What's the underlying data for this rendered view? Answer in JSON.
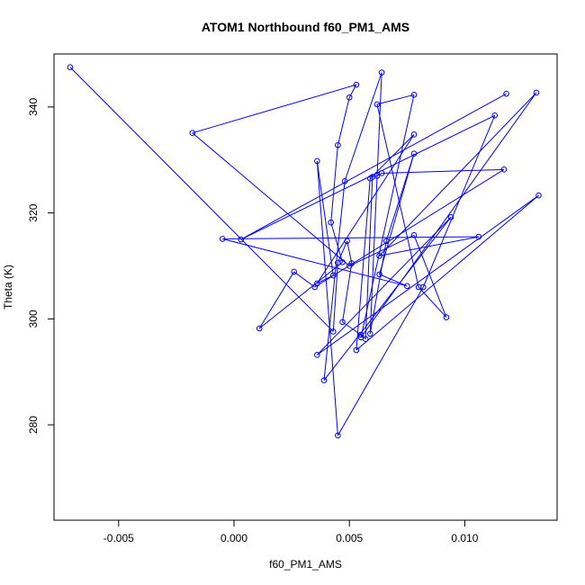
{
  "chart_data": {
    "type": "line",
    "title": "ATOM1 Northbound f60_PM1_AMS",
    "xlabel": "f60_PM1_AMS",
    "ylabel": "Theta (K)",
    "xlim": [
      -0.0078,
      0.014
    ],
    "ylim": [
      262.0,
      350.0
    ],
    "x_ticks": [
      -0.005,
      0.0,
      0.005,
      0.01
    ],
    "x_tick_labels": [
      "-0.005",
      "0.000",
      "0.005",
      "0.010"
    ],
    "y_ticks": [
      280,
      300,
      320,
      340
    ],
    "y_tick_labels": [
      "280",
      "300",
      "320",
      "340"
    ],
    "grid": false,
    "marker": "open-circle",
    "series": [
      {
        "color": "#0000ff",
        "points": [
          [
            -0.0071,
            347.5
          ],
          [
            0.0043,
            297.6
          ],
          [
            0.0045,
            310.6
          ],
          [
            0.0049,
            314.7
          ],
          [
            0.0051,
            310.5
          ],
          [
            0.0047,
            299.4
          ],
          [
            0.0055,
            297.0
          ],
          [
            0.0057,
            296.2
          ],
          [
            0.006,
            326.8
          ],
          [
            0.0062,
            327.0
          ],
          [
            0.0064,
            327.5
          ],
          [
            0.0117,
            328.2
          ],
          [
            0.0035,
            306.0
          ],
          [
            0.0026,
            308.9
          ],
          [
            0.0011,
            298.2
          ],
          [
            0.0047,
            310.7
          ],
          [
            0.0042,
            318.2
          ],
          [
            0.0045,
            332.8
          ],
          [
            0.005,
            341.8
          ],
          [
            0.0053,
            344.2
          ],
          [
            -0.0018,
            335.1
          ],
          [
            0.005,
            310.0
          ],
          [
            0.0078,
            315.8
          ],
          [
            0.0092,
            300.3
          ],
          [
            0.008,
            306.0
          ],
          [
            0.0062,
            340.5
          ],
          [
            0.0078,
            342.3
          ],
          [
            0.0055,
            296.5
          ],
          [
            0.0131,
            342.7
          ],
          [
            0.0063,
            311.9
          ],
          [
            0.0106,
            315.5
          ],
          [
            -0.0005,
            315.1
          ],
          [
            0.0075,
            306.2
          ],
          [
            0.0063,
            308.4
          ],
          [
            0.0078,
            331.2
          ],
          [
            0.0066,
            314.7
          ],
          [
            0.0059,
            297.2
          ],
          [
            0.0064,
            346.5
          ],
          [
            0.0048,
            326.0
          ],
          [
            0.0039,
            288.4
          ],
          [
            0.0094,
            319.2
          ],
          [
            0.0036,
            293.2
          ],
          [
            0.0132,
            323.3
          ],
          [
            0.0053,
            294.1
          ],
          [
            0.0059,
            326.5
          ],
          [
            0.0078,
            334.8
          ],
          [
            0.0036,
            306.7
          ],
          [
            0.0043,
            308.2
          ],
          [
            0.0036,
            329.8
          ],
          [
            0.0045,
            278.0
          ],
          [
            0.0082,
            306.0
          ],
          [
            0.0113,
            338.4
          ],
          [
            0.0003,
            315.0
          ],
          [
            0.0118,
            342.5
          ]
        ]
      }
    ]
  }
}
